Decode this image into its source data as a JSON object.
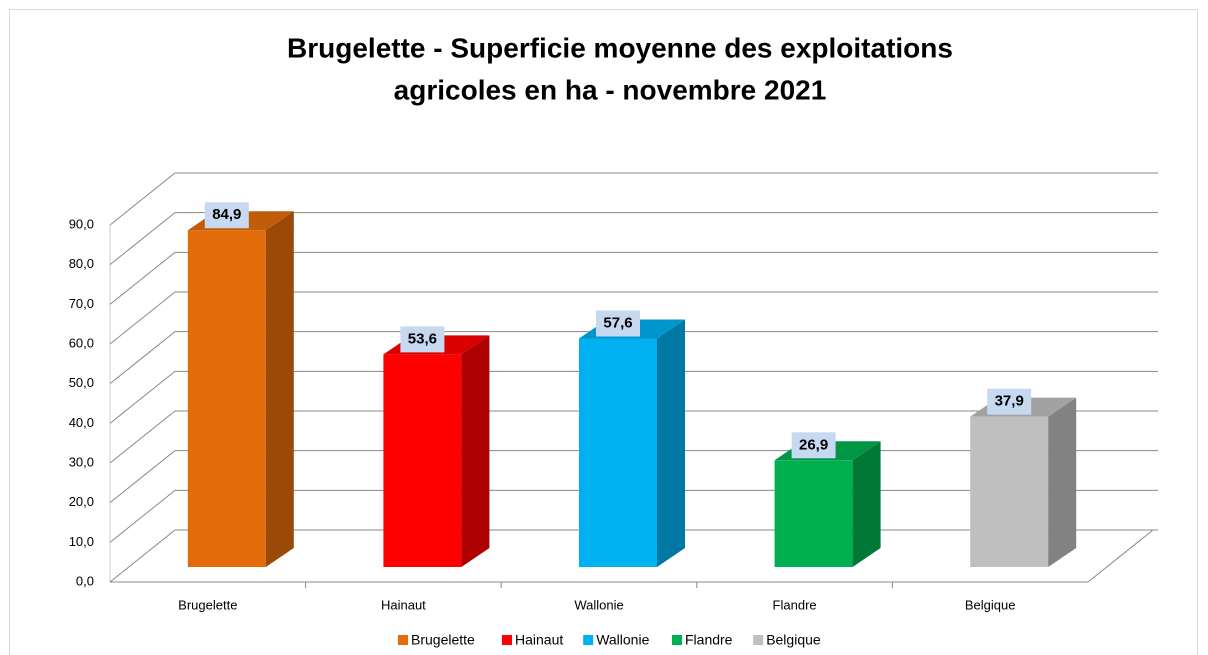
{
  "chart_data": {
    "type": "bar3d",
    "title": [
      "Brugelette - Superficie moyenne des exploitations",
      "agricoles en ha - novembre 2021"
    ],
    "categories": [
      "Brugelette",
      "Hainaut",
      "Wallonie",
      "Flandre",
      "Belgique"
    ],
    "values": [
      84.9,
      53.6,
      57.6,
      26.9,
      37.9
    ],
    "value_labels": [
      "84,9",
      "53,6",
      "57,6",
      "26,9",
      "37,9"
    ],
    "colors": [
      "#e36c0a",
      "#ff0000",
      "#00b0f0",
      "#00b050",
      "#bfbfbf"
    ],
    "ylim": [
      0,
      90
    ],
    "yticks": [
      {
        "value": 0,
        "label": "0,0"
      },
      {
        "value": 10,
        "label": "10,0"
      },
      {
        "value": 20,
        "label": "20,0"
      },
      {
        "value": 30,
        "label": "30,0"
      },
      {
        "value": 40,
        "label": "40,0"
      },
      {
        "value": 50,
        "label": "50,0"
      },
      {
        "value": 60,
        "label": "60,0"
      },
      {
        "value": 70,
        "label": "70,0"
      },
      {
        "value": 80,
        "label": "80,0"
      },
      {
        "value": 90,
        "label": "90,0"
      }
    ],
    "grid": true,
    "legend": "bottom"
  }
}
